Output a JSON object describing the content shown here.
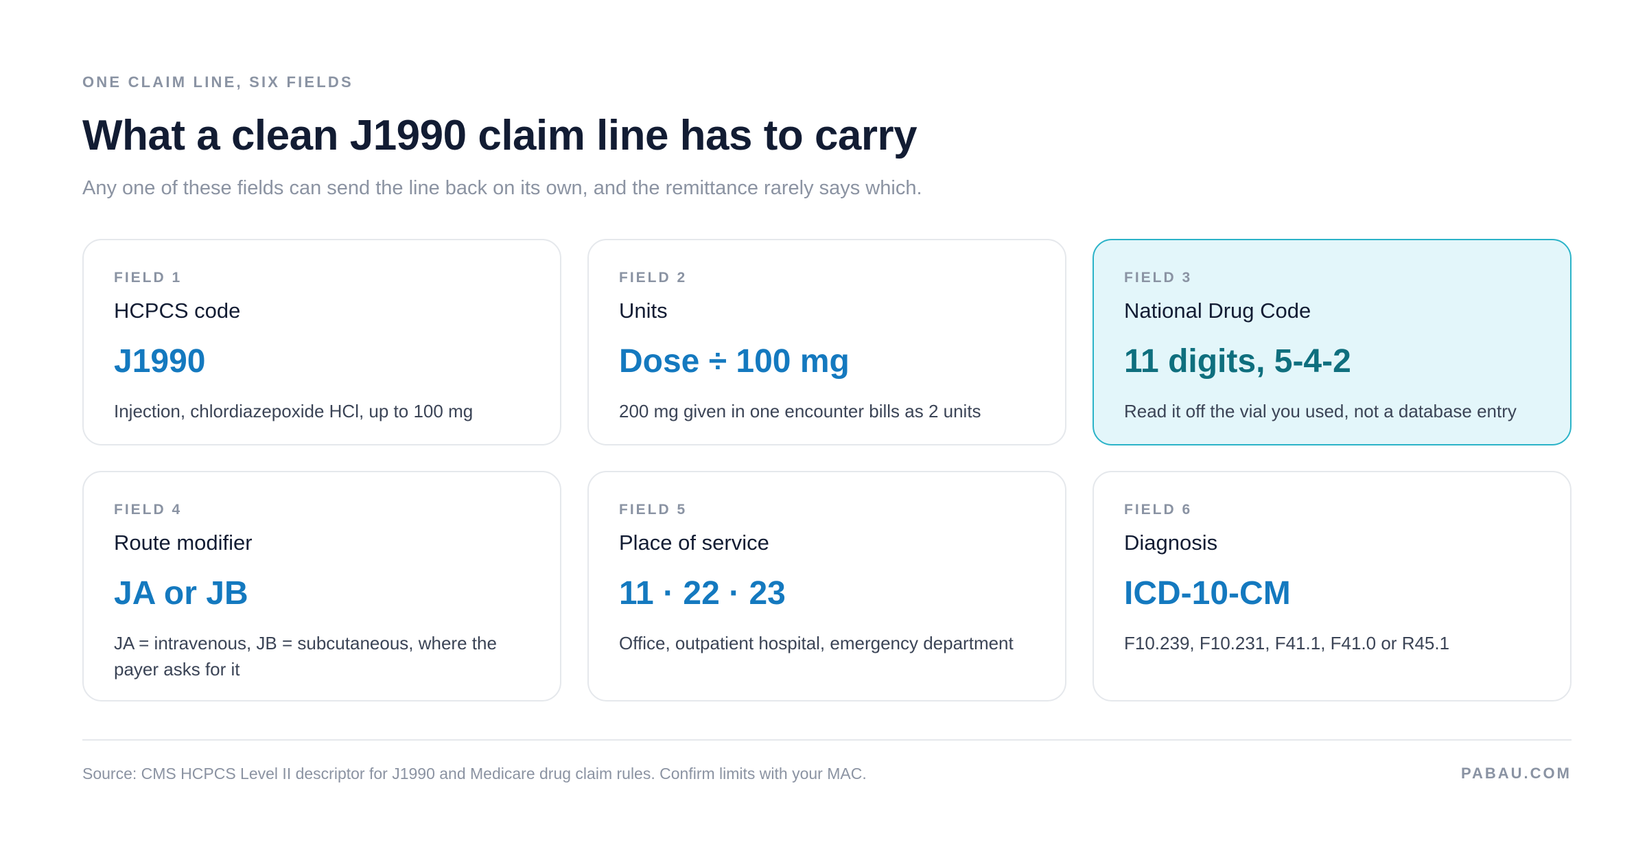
{
  "header": {
    "eyebrow": "ONE CLAIM LINE, SIX FIELDS",
    "title": "What a clean J1990 claim line has to carry",
    "subtitle": "Any one of these fields can send the line back on its own, and the remittance rarely says which."
  },
  "fields": [
    {
      "number": "FIELD 1",
      "name": "HCPCS code",
      "value": "J1990",
      "description": "Injection, chlordiazepoxide HCl, up to 100 mg"
    },
    {
      "number": "FIELD 2",
      "name": "Units",
      "value": "Dose ÷ 100 mg",
      "description": "200 mg given in one encounter bills as 2 units"
    },
    {
      "number": "FIELD 3",
      "name": "National Drug Code",
      "value": "11 digits, 5-4-2",
      "description": "Read it off the vial you used, not a database entry",
      "highlighted": true
    },
    {
      "number": "FIELD 4",
      "name": "Route modifier",
      "value": "JA or JB",
      "description": "JA = intravenous, JB = subcutaneous, where the payer asks for it"
    },
    {
      "number": "FIELD 5",
      "name": "Place of service",
      "value": "11 · 22 · 23",
      "description": "Office, outpatient hospital, emergency department"
    },
    {
      "number": "FIELD 6",
      "name": "Diagnosis",
      "value": "ICD-10-CM",
      "description": "F10.239, F10.231, F41.1, F41.0 or R45.1"
    }
  ],
  "footer": {
    "source": "Source: CMS HCPCS Level II descriptor for J1990 and Medicare drug claim rules. Confirm limits with your MAC.",
    "brand": "PABAU.COM"
  },
  "colors": {
    "accent": "#1479bf",
    "highlight_value": "#0f6f7e",
    "highlight_background": "#e3f6fa",
    "highlight_border": "#2bb3c8",
    "heading": "#121c33",
    "muted": "#8a93a3"
  }
}
